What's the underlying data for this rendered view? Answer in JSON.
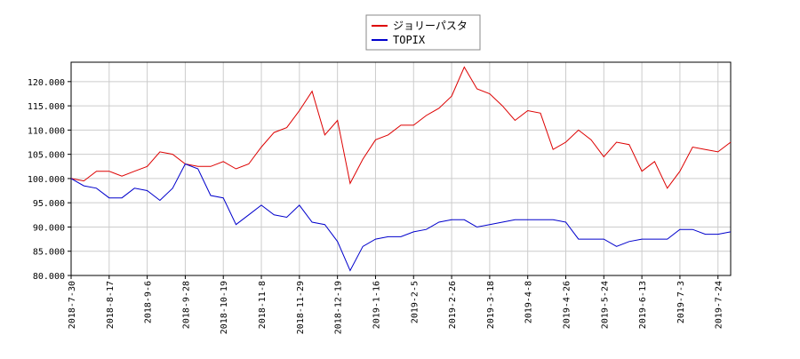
{
  "chart_data": {
    "type": "line",
    "x": [
      "2018-7-30",
      "2018-8-6",
      "2018-8-10",
      "2018-8-17",
      "2018-8-23",
      "2018-8-30",
      "2018-9-6",
      "2018-9-13",
      "2018-9-20",
      "2018-9-28",
      "2018-10-5",
      "2018-10-12",
      "2018-10-19",
      "2018-10-26",
      "2018-11-1",
      "2018-11-8",
      "2018-11-15",
      "2018-11-22",
      "2018-11-29",
      "2018-12-6",
      "2018-12-13",
      "2018-12-19",
      "2018-12-28",
      "2019-1-9",
      "2019-1-16",
      "2019-1-23",
      "2019-1-29",
      "2019-2-5",
      "2019-2-12",
      "2019-2-19",
      "2019-2-26",
      "2019-3-5",
      "2019-3-11",
      "2019-3-18",
      "2019-3-25",
      "2019-4-1",
      "2019-4-8",
      "2019-4-15",
      "2019-4-19",
      "2019-4-26",
      "2019-5-14",
      "2019-5-17",
      "2019-5-24",
      "2019-5-30",
      "2019-6-6",
      "2019-6-13",
      "2019-6-19",
      "2019-6-26",
      "2019-7-3",
      "2019-7-10",
      "2019-7-17",
      "2019-7-24",
      "2019-7-29"
    ],
    "series": [
      {
        "name": "ジョリーパスタ",
        "color": "#dd0000",
        "values": [
          100,
          99.5,
          101.5,
          101.5,
          100.5,
          101.5,
          102.5,
          105.5,
          105,
          103,
          102.5,
          102.5,
          103.5,
          102,
          103,
          106.5,
          109.5,
          110.5,
          114,
          118,
          109,
          112,
          99,
          104,
          108,
          109,
          111,
          111,
          113,
          114.5,
          117,
          123,
          118.5,
          117.5,
          115,
          112,
          114,
          113.5,
          106,
          107.5,
          110,
          108,
          104.5,
          107.5,
          107,
          101.5,
          103.5,
          98,
          101.5,
          106.5,
          106,
          105.5,
          107.5
        ]
      },
      {
        "name": "TOPIX",
        "color": "#0000cc",
        "values": [
          100,
          98.5,
          98,
          96,
          96,
          98,
          97.5,
          95.5,
          98,
          103,
          102,
          96.5,
          96,
          90.5,
          92.5,
          94.5,
          92.5,
          92,
          94.5,
          91,
          90.5,
          87,
          81,
          86,
          87.5,
          88,
          88,
          89,
          89.5,
          91,
          91.5,
          91.5,
          90,
          90.5,
          91,
          91.5,
          91.5,
          91.5,
          91.5,
          91,
          87.5,
          87.5,
          87.5,
          86,
          87,
          87.5,
          87.5,
          87.5,
          89.5,
          89.5,
          88.5,
          88.5,
          89
        ]
      }
    ],
    "ylim": [
      80,
      124
    ],
    "yticks": [
      {
        "value": 80,
        "label": "80.000"
      },
      {
        "value": 85,
        "label": "85.000"
      },
      {
        "value": 90,
        "label": "90.000"
      },
      {
        "value": 95,
        "label": "95.000"
      },
      {
        "value": 100,
        "label": "100.000"
      },
      {
        "value": 105,
        "label": "105.000"
      },
      {
        "value": 110,
        "label": "110.000"
      },
      {
        "value": 115,
        "label": "115.000"
      },
      {
        "value": 120,
        "label": "120.000"
      }
    ],
    "xticks": [
      "2018-7-30",
      "2018-8-17",
      "2018-9-6",
      "2018-9-28",
      "2018-10-19",
      "2018-11-8",
      "2018-11-29",
      "2018-12-19",
      "2019-1-16",
      "2019-2-5",
      "2019-2-26",
      "2019-3-18",
      "2019-4-8",
      "2019-4-26",
      "2019-5-24",
      "2019-6-13",
      "2019-7-3",
      "2019-7-24"
    ],
    "grid": true
  }
}
